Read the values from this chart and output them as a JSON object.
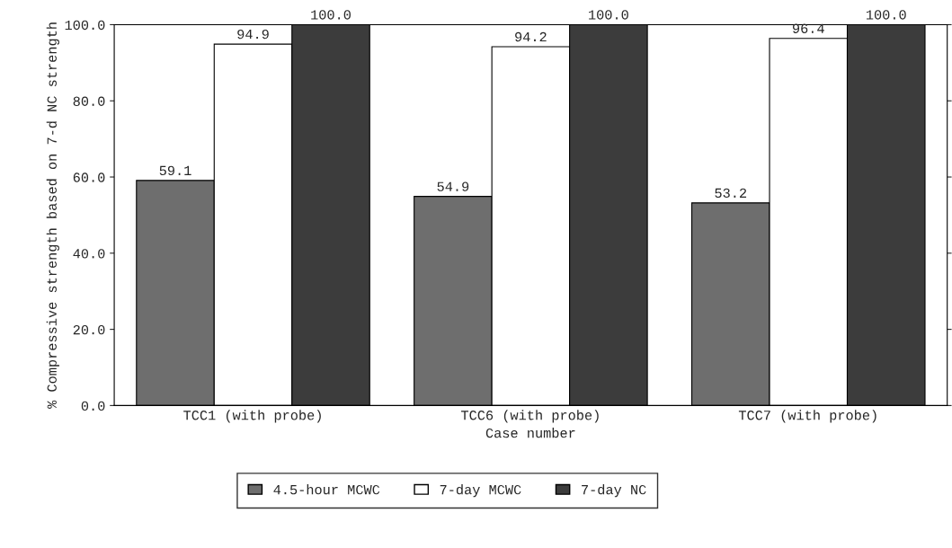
{
  "chart_data": {
    "type": "bar",
    "xlabel": "Case number",
    "ylabel": "% Compressive strength based on 7-d NC strength",
    "categories": [
      "TCC1 (with probe)",
      "TCC6 (with probe)",
      "TCC7 (with probe)"
    ],
    "series": [
      {
        "name": "4.5-hour MCWC",
        "color": "#6e6e6e",
        "values": [
          59.1,
          54.9,
          53.2
        ],
        "value_labels": [
          "59.1",
          "54.9",
          "53.2"
        ]
      },
      {
        "name": "7-day MCWC",
        "color": "#ffffff",
        "values": [
          94.9,
          94.2,
          96.4
        ],
        "value_labels": [
          "94.9",
          "94.2",
          "96.4"
        ]
      },
      {
        "name": "7-day NC",
        "color": "#3c3c3c",
        "values": [
          100.0,
          100.0,
          100.0
        ],
        "value_labels": [
          "100.0",
          "100.0",
          "100.0"
        ]
      }
    ],
    "ylim": [
      0,
      100
    ],
    "yticks": [
      {
        "value": 0,
        "label": "0.0"
      },
      {
        "value": 20,
        "label": "20.0"
      },
      {
        "value": 40,
        "label": "40.0"
      },
      {
        "value": 60,
        "label": "60.0"
      },
      {
        "value": 80,
        "label": "80.0"
      },
      {
        "value": 100,
        "label": "100.0"
      }
    ],
    "grid": false,
    "legend": "bottom"
  }
}
